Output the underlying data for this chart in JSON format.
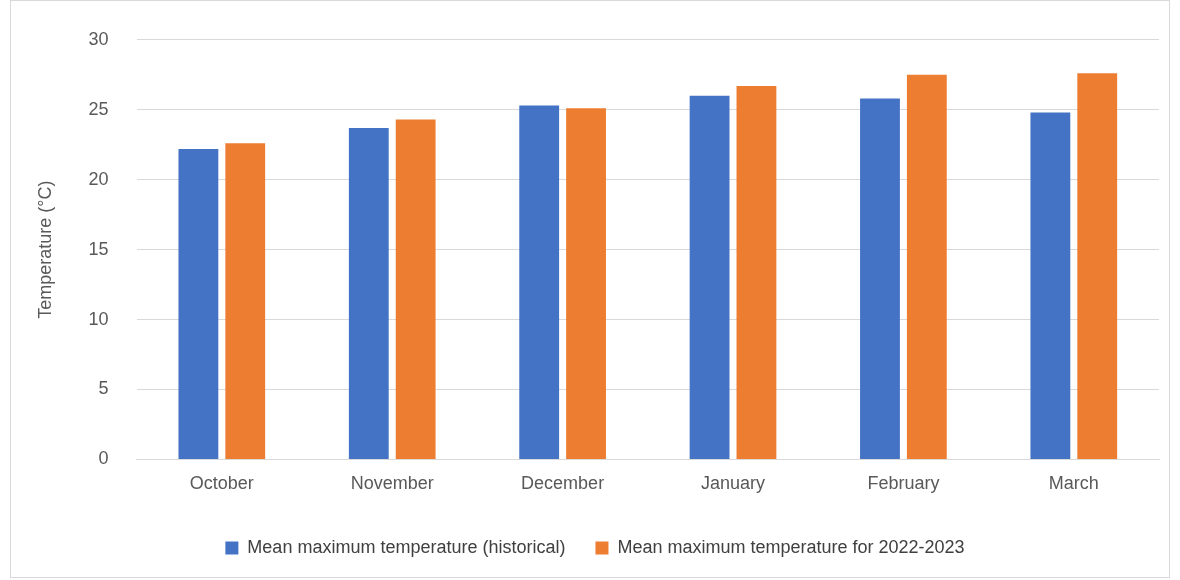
{
  "chart_data": {
    "type": "bar",
    "ylabel": "Temperature (°C)",
    "categories": [
      "October",
      "November",
      "December",
      "January",
      "February",
      "March"
    ],
    "series": [
      {
        "name": "Mean maximum temperature (historical)",
        "color": "#4472c4",
        "values": [
          22.2,
          23.7,
          25.3,
          26.0,
          25.8,
          24.8
        ]
      },
      {
        "name": "Mean maximum temperature for 2022-2023",
        "color": "#ed7d31",
        "values": [
          22.6,
          24.3,
          25.1,
          26.7,
          27.5,
          27.6
        ]
      }
    ],
    "ylim": [
      0,
      30
    ],
    "yticks": [
      0,
      5,
      10,
      15,
      20,
      25,
      30
    ],
    "grid": "y",
    "legend": "bottom"
  }
}
